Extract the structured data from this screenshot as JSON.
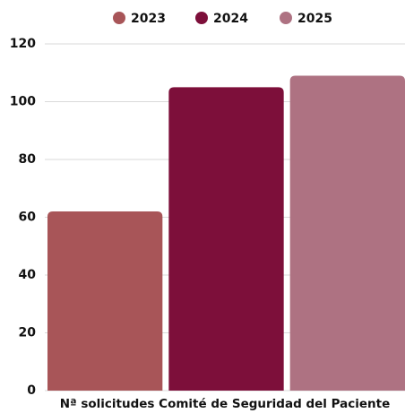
{
  "chart_data": {
    "type": "bar",
    "categories": [
      "Nª solicitudes Comité de Seguridad del Paciente"
    ],
    "series": [
      {
        "name": "2023",
        "color": "#a85558",
        "values": [
          62
        ]
      },
      {
        "name": "2024",
        "color": "#7d0f3a",
        "values": [
          105
        ]
      },
      {
        "name": "2025",
        "color": "#ae7282",
        "values": [
          109
        ]
      }
    ],
    "ylim": [
      0,
      120
    ],
    "yticks": [
      0,
      20,
      40,
      60,
      80,
      100,
      120
    ],
    "grid": true,
    "legend": "top"
  }
}
